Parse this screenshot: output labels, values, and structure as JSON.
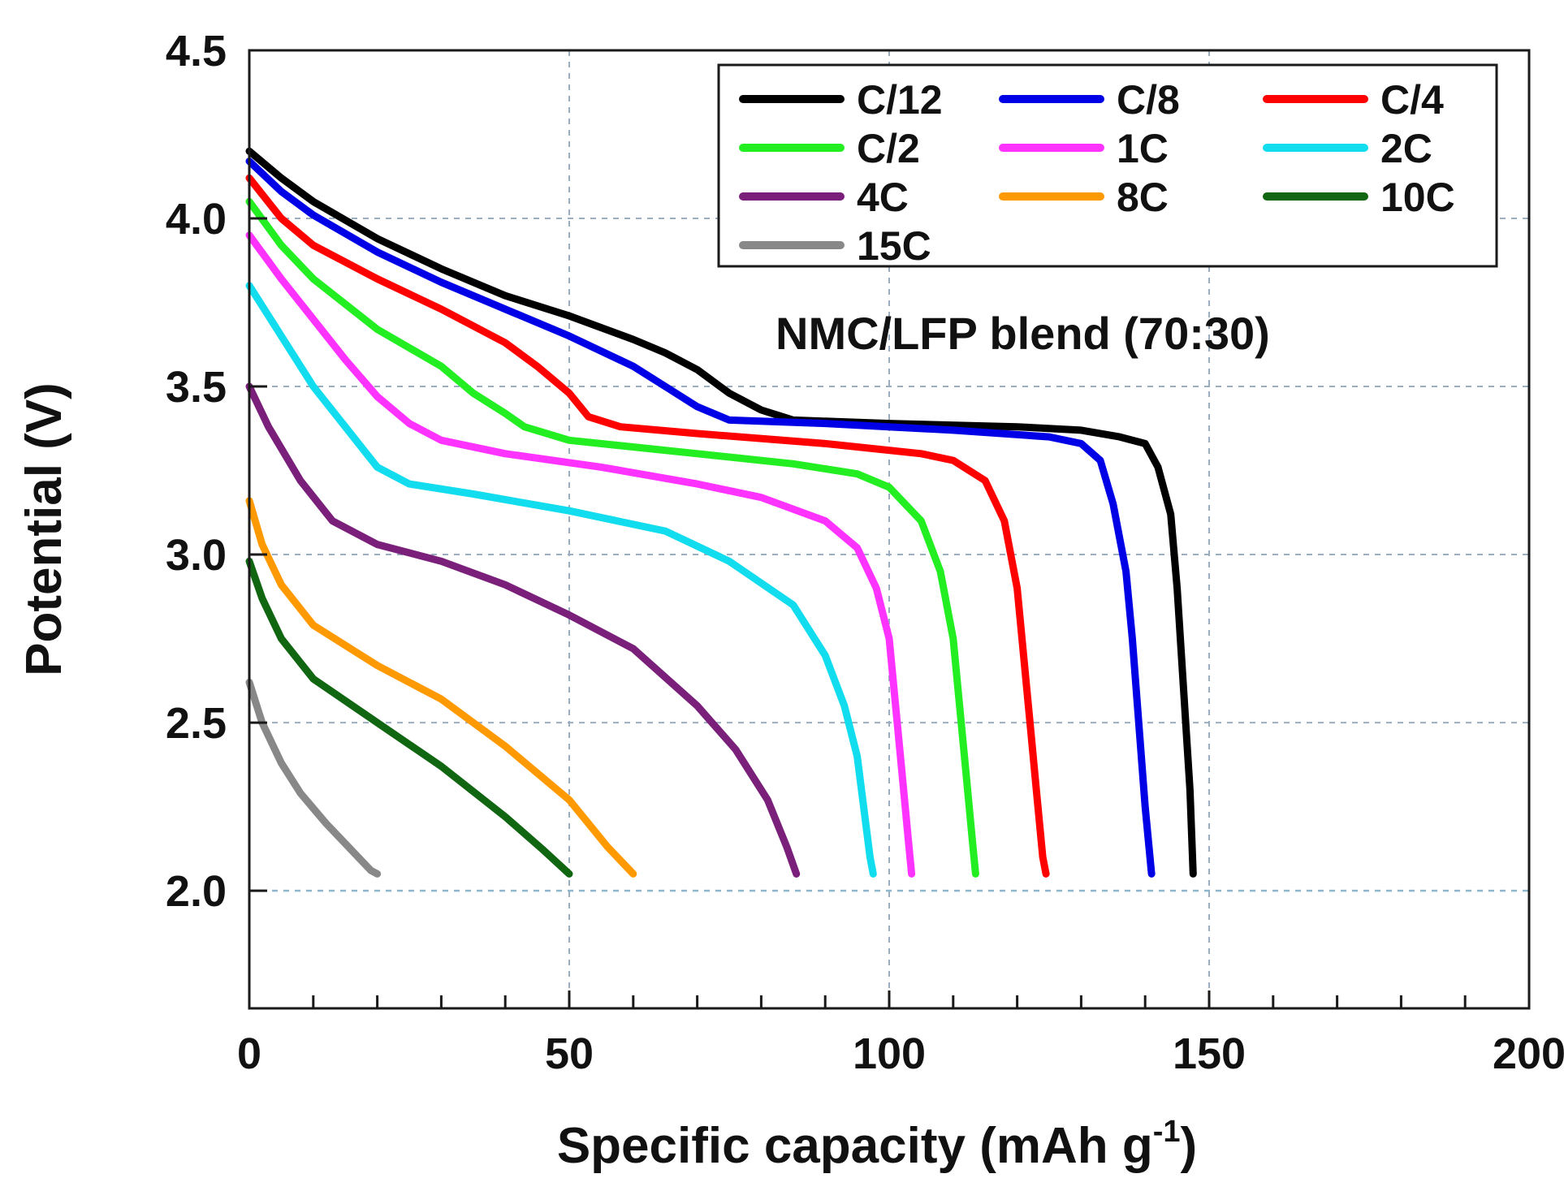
{
  "chart_data": {
    "type": "line",
    "title": "",
    "annotation": "NMC/LFP blend (70:30)",
    "xlabel": "Specific capacity (mAh g",
    "xlabel_superscript": "-1",
    "xlabel_suffix": ")",
    "ylabel": "Potential (V)",
    "xlim": [
      0,
      200
    ],
    "ylim": [
      1.65,
      4.5
    ],
    "x_ticks": [
      0,
      50,
      100,
      150,
      200
    ],
    "x_tick_labels": [
      "0",
      "50",
      "100",
      "150",
      "200"
    ],
    "x_minor_ticks": [
      10,
      20,
      30,
      40,
      60,
      70,
      80,
      90,
      110,
      120,
      130,
      140,
      160,
      170,
      180,
      190
    ],
    "y_ticks": [
      2.0,
      2.5,
      3.0,
      3.5,
      4.0,
      4.5
    ],
    "y_tick_labels": [
      "2.0",
      "2.5",
      "3.0",
      "3.5",
      "4.0",
      "4.5"
    ],
    "grid_x": [
      50,
      100,
      150
    ],
    "grid_y": [
      2.0,
      2.5,
      3.0,
      3.5,
      4.0
    ],
    "legend_position": "top-right",
    "series": [
      {
        "name": "C/12",
        "color": "#000000",
        "points": [
          [
            0,
            4.2
          ],
          [
            5,
            4.12
          ],
          [
            10,
            4.05
          ],
          [
            20,
            3.94
          ],
          [
            30,
            3.85
          ],
          [
            40,
            3.77
          ],
          [
            50,
            3.71
          ],
          [
            60,
            3.64
          ],
          [
            65,
            3.6
          ],
          [
            70,
            3.55
          ],
          [
            75,
            3.48
          ],
          [
            80,
            3.43
          ],
          [
            85,
            3.4
          ],
          [
            100,
            3.39
          ],
          [
            120,
            3.38
          ],
          [
            130,
            3.37
          ],
          [
            136,
            3.35
          ],
          [
            140,
            3.33
          ],
          [
            142,
            3.26
          ],
          [
            144,
            3.12
          ],
          [
            145,
            2.9
          ],
          [
            146,
            2.6
          ],
          [
            147,
            2.3
          ],
          [
            147.5,
            2.05
          ]
        ]
      },
      {
        "name": "C/8",
        "color": "#0000e6",
        "points": [
          [
            0,
            4.17
          ],
          [
            5,
            4.08
          ],
          [
            10,
            4.01
          ],
          [
            20,
            3.9
          ],
          [
            30,
            3.81
          ],
          [
            40,
            3.73
          ],
          [
            50,
            3.65
          ],
          [
            60,
            3.56
          ],
          [
            65,
            3.5
          ],
          [
            70,
            3.44
          ],
          [
            75,
            3.4
          ],
          [
            90,
            3.39
          ],
          [
            110,
            3.37
          ],
          [
            125,
            3.35
          ],
          [
            130,
            3.33
          ],
          [
            133,
            3.28
          ],
          [
            135,
            3.15
          ],
          [
            137,
            2.95
          ],
          [
            138,
            2.75
          ],
          [
            139,
            2.5
          ],
          [
            140,
            2.25
          ],
          [
            141,
            2.05
          ]
        ]
      },
      {
        "name": "C/4",
        "color": "#ff0000",
        "points": [
          [
            0,
            4.12
          ],
          [
            5,
            4.0
          ],
          [
            10,
            3.92
          ],
          [
            20,
            3.82
          ],
          [
            30,
            3.73
          ],
          [
            40,
            3.63
          ],
          [
            45,
            3.56
          ],
          [
            50,
            3.48
          ],
          [
            53,
            3.41
          ],
          [
            58,
            3.38
          ],
          [
            70,
            3.36
          ],
          [
            90,
            3.33
          ],
          [
            105,
            3.3
          ],
          [
            110,
            3.28
          ],
          [
            115,
            3.22
          ],
          [
            118,
            3.1
          ],
          [
            120,
            2.9
          ],
          [
            121,
            2.7
          ],
          [
            122,
            2.5
          ],
          [
            123,
            2.3
          ],
          [
            124,
            2.1
          ],
          [
            124.5,
            2.05
          ]
        ]
      },
      {
        "name": "C/2",
        "color": "#22ee22",
        "points": [
          [
            0,
            4.05
          ],
          [
            5,
            3.92
          ],
          [
            10,
            3.82
          ],
          [
            20,
            3.67
          ],
          [
            30,
            3.56
          ],
          [
            35,
            3.48
          ],
          [
            40,
            3.42
          ],
          [
            43,
            3.38
          ],
          [
            50,
            3.34
          ],
          [
            70,
            3.3
          ],
          [
            85,
            3.27
          ],
          [
            95,
            3.24
          ],
          [
            100,
            3.2
          ],
          [
            105,
            3.1
          ],
          [
            108,
            2.95
          ],
          [
            110,
            2.75
          ],
          [
            111,
            2.55
          ],
          [
            112,
            2.35
          ],
          [
            113,
            2.15
          ],
          [
            113.5,
            2.05
          ]
        ]
      },
      {
        "name": "1C",
        "color": "#ff33ff",
        "points": [
          [
            0,
            3.95
          ],
          [
            5,
            3.82
          ],
          [
            10,
            3.7
          ],
          [
            15,
            3.58
          ],
          [
            20,
            3.47
          ],
          [
            25,
            3.39
          ],
          [
            30,
            3.34
          ],
          [
            40,
            3.3
          ],
          [
            55,
            3.26
          ],
          [
            70,
            3.21
          ],
          [
            80,
            3.17
          ],
          [
            90,
            3.1
          ],
          [
            95,
            3.02
          ],
          [
            98,
            2.9
          ],
          [
            100,
            2.75
          ],
          [
            101,
            2.55
          ],
          [
            102,
            2.35
          ],
          [
            103,
            2.15
          ],
          [
            103.5,
            2.05
          ]
        ]
      },
      {
        "name": "2C",
        "color": "#11ddee",
        "points": [
          [
            0,
            3.8
          ],
          [
            5,
            3.65
          ],
          [
            10,
            3.5
          ],
          [
            15,
            3.38
          ],
          [
            20,
            3.26
          ],
          [
            25,
            3.21
          ],
          [
            35,
            3.18
          ],
          [
            50,
            3.13
          ],
          [
            65,
            3.07
          ],
          [
            75,
            2.98
          ],
          [
            85,
            2.85
          ],
          [
            90,
            2.7
          ],
          [
            93,
            2.55
          ],
          [
            95,
            2.4
          ],
          [
            96,
            2.25
          ],
          [
            97,
            2.1
          ],
          [
            97.5,
            2.05
          ]
        ]
      },
      {
        "name": "4C",
        "color": "#7a1f7a",
        "points": [
          [
            0,
            3.5
          ],
          [
            3,
            3.38
          ],
          [
            8,
            3.22
          ],
          [
            13,
            3.1
          ],
          [
            20,
            3.03
          ],
          [
            30,
            2.98
          ],
          [
            40,
            2.91
          ],
          [
            50,
            2.82
          ],
          [
            60,
            2.72
          ],
          [
            70,
            2.55
          ],
          [
            76,
            2.42
          ],
          [
            81,
            2.27
          ],
          [
            84,
            2.13
          ],
          [
            85.5,
            2.05
          ]
        ]
      },
      {
        "name": "8C",
        "color": "#ff9900",
        "points": [
          [
            0,
            3.16
          ],
          [
            2,
            3.03
          ],
          [
            5,
            2.91
          ],
          [
            10,
            2.79
          ],
          [
            20,
            2.67
          ],
          [
            30,
            2.57
          ],
          [
            40,
            2.43
          ],
          [
            50,
            2.27
          ],
          [
            56,
            2.13
          ],
          [
            60,
            2.05
          ]
        ]
      },
      {
        "name": "10C",
        "color": "#116611",
        "points": [
          [
            0,
            2.98
          ],
          [
            2,
            2.87
          ],
          [
            5,
            2.75
          ],
          [
            10,
            2.63
          ],
          [
            20,
            2.5
          ],
          [
            30,
            2.37
          ],
          [
            40,
            2.22
          ],
          [
            46,
            2.12
          ],
          [
            50,
            2.05
          ]
        ]
      },
      {
        "name": "15C",
        "color": "#888888",
        "points": [
          [
            0,
            2.62
          ],
          [
            2,
            2.5
          ],
          [
            5,
            2.38
          ],
          [
            8,
            2.29
          ],
          [
            12,
            2.2
          ],
          [
            16,
            2.12
          ],
          [
            19,
            2.06
          ],
          [
            20,
            2.05
          ]
        ]
      }
    ]
  }
}
